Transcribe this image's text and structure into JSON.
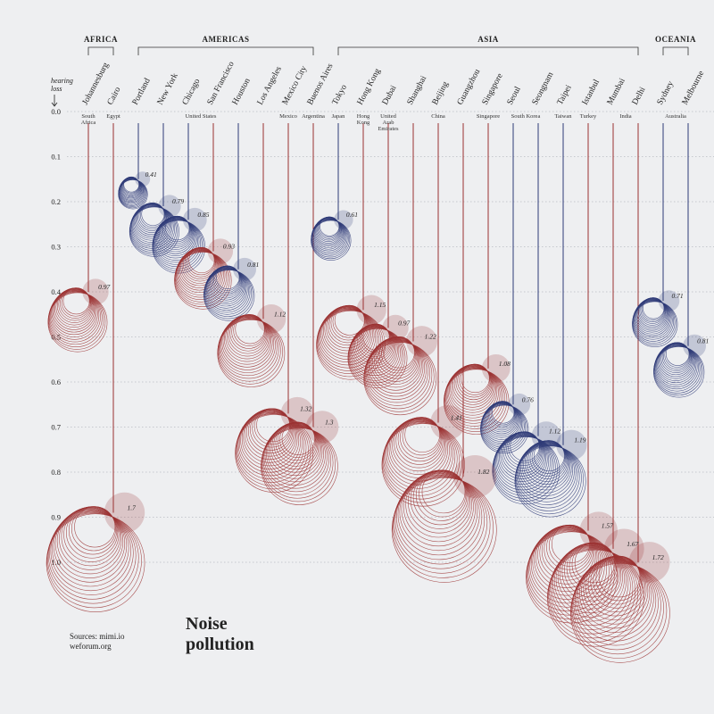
{
  "chart_data": {
    "type": "bubble",
    "title_lines": [
      "Noise",
      "pollution"
    ],
    "sources": [
      "Sources: mimi.io",
      "weforum.org"
    ],
    "y_label_lines": [
      "hearing",
      "loss"
    ],
    "ylim": [
      0,
      1
    ],
    "yticks": [
      {
        "value": 0,
        "label": "0.0"
      },
      0.1,
      0.2,
      0.3,
      0.4,
      0.5,
      0.6,
      0.7,
      0.8,
      0.9,
      {
        "value": 1,
        "label": "1.0"
      }
    ],
    "grid": true,
    "regions": [
      {
        "name": "AFRICA",
        "countries": [
          {
            "name": "South Africa",
            "cities": [
              {
                "name": "Johannesburg",
                "loss": 0.4,
                "index": 0.97,
                "color": "#9b3131"
              }
            ]
          },
          {
            "name": "Egypt",
            "cities": [
              {
                "name": "Cairo",
                "loss": 0.89,
                "index": 1.7,
                "color": "#9b3131"
              }
            ]
          }
        ]
      },
      {
        "name": "AMERICAS",
        "countries": [
          {
            "name": "United States",
            "cities": [
              {
                "name": "Portland",
                "loss": 0.15,
                "index": 0.41,
                "color": "#2f3b78"
              },
              {
                "name": "New York",
                "loss": 0.21,
                "index": 0.79,
                "color": "#2f3b78"
              },
              {
                "name": "Chicago",
                "loss": 0.24,
                "index": 0.85,
                "color": "#2f3b78"
              },
              {
                "name": "San Francisco",
                "loss": 0.31,
                "index": 0.93,
                "color": "#9b3131"
              },
              {
                "name": "Houston",
                "loss": 0.35,
                "index": 0.81,
                "color": "#2f3b78"
              },
              {
                "name": "Los Angeles",
                "loss": 0.46,
                "index": 1.12,
                "color": "#9b3131"
              }
            ]
          },
          {
            "name": "Mexico",
            "cities": [
              {
                "name": "Mexico City",
                "loss": 0.67,
                "index": 1.32,
                "color": "#9b3131"
              }
            ]
          },
          {
            "name": "Argentina",
            "cities": [
              {
                "name": "Buenos Aires",
                "loss": 0.7,
                "index": 1.3,
                "color": "#9b3131"
              }
            ]
          }
        ]
      },
      {
        "name": "ASIA",
        "countries": [
          {
            "name": "Japan",
            "cities": [
              {
                "name": "Tokyo",
                "loss": 0.24,
                "index": 0.61,
                "color": "#2f3b78"
              }
            ]
          },
          {
            "name": "Hong Kong",
            "cities": [
              {
                "name": "Hong Kong",
                "loss": 0.44,
                "index": 1.15,
                "color": "#9b3131"
              }
            ]
          },
          {
            "name": "United Arab Emirates",
            "cities": [
              {
                "name": "Dubai",
                "loss": 0.48,
                "index": 0.97,
                "color": "#9b3131"
              }
            ]
          },
          {
            "name": "China",
            "cities": [
              {
                "name": "Shanghai",
                "loss": 0.51,
                "index": 1.22,
                "color": "#9b3131"
              },
              {
                "name": "Beijing",
                "loss": 0.69,
                "index": 1.41,
                "color": "#9b3131"
              },
              {
                "name": "Guangzhou",
                "loss": 0.81,
                "index": 1.82,
                "color": "#9b3131"
              }
            ]
          },
          {
            "name": "Singapore",
            "cities": [
              {
                "name": "Singapore",
                "loss": 0.57,
                "index": 1.08,
                "color": "#9b3131"
              }
            ]
          },
          {
            "name": "South Korea",
            "cities": [
              {
                "name": "Seoul",
                "loss": 0.65,
                "index": 0.76,
                "color": "#2f3b78"
              },
              {
                "name": "Seongnam",
                "loss": 0.72,
                "index": 1.12,
                "color": "#2f3b78"
              }
            ]
          },
          {
            "name": "Taiwan",
            "cities": [
              {
                "name": "Taipei",
                "loss": 0.74,
                "index": 1.19,
                "color": "#2f3b78"
              }
            ]
          },
          {
            "name": "Turkey",
            "cities": [
              {
                "name": "Istanbul",
                "loss": 0.93,
                "index": 1.57,
                "color": "#9b3131"
              }
            ]
          },
          {
            "name": "India",
            "cities": [
              {
                "name": "Mumbai",
                "loss": 0.97,
                "index": 1.67,
                "color": "#9b3131"
              },
              {
                "name": "Delhi",
                "loss": 1.0,
                "index": 1.72,
                "color": "#9b3131"
              }
            ]
          }
        ]
      },
      {
        "name": "OCEANIA",
        "countries": [
          {
            "name": "Australia",
            "cities": [
              {
                "name": "Sydney",
                "loss": 0.42,
                "index": 0.71,
                "color": "#2f3b78"
              },
              {
                "name": "Melbourne",
                "loss": 0.52,
                "index": 0.81,
                "color": "#2f3b78"
              }
            ]
          }
        ]
      }
    ]
  }
}
